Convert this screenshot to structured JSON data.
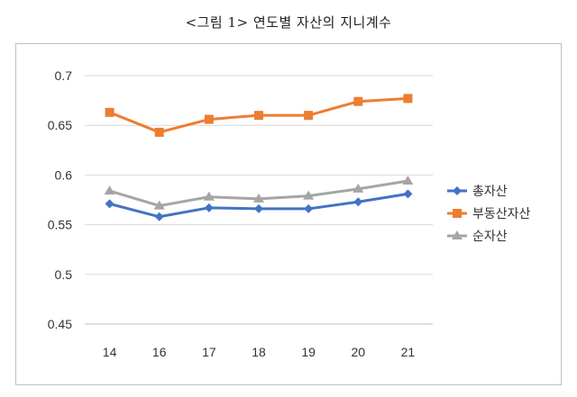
{
  "chart_data": {
    "type": "line",
    "title": "<그림 1> 연도별 자산의 지니계수",
    "xlabel": "",
    "ylabel": "",
    "categories": [
      "14",
      "16",
      "17",
      "18",
      "19",
      "20",
      "21"
    ],
    "ylim": [
      0.45,
      0.7
    ],
    "yticks": [
      "0.45",
      "0.5",
      "0.55",
      "0.6",
      "0.65",
      "0.7"
    ],
    "grid": true,
    "legend_position": "right",
    "series": [
      {
        "name": "총자산",
        "color": "#4472C4",
        "marker": "diamond",
        "values": [
          0.571,
          0.558,
          0.567,
          0.566,
          0.566,
          0.573,
          0.581
        ]
      },
      {
        "name": "부동산자산",
        "color": "#ED7D31",
        "marker": "square",
        "values": [
          0.663,
          0.643,
          0.656,
          0.66,
          0.66,
          0.674,
          0.677
        ]
      },
      {
        "name": "순자산",
        "color": "#A5A5A5",
        "marker": "triangle",
        "values": [
          0.584,
          0.569,
          0.578,
          0.576,
          0.579,
          0.586,
          0.594
        ]
      }
    ]
  }
}
